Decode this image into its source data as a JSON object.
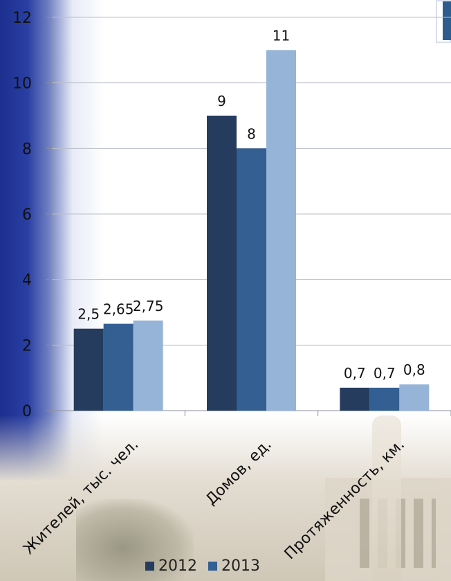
{
  "chart_data": {
    "type": "bar",
    "categories": [
      "Жителей, тыс. чел.",
      "Домов, ед.",
      "Протяженность, км."
    ],
    "series": [
      {
        "name": "2012",
        "values": [
          2.5,
          9,
          0.7
        ],
        "labels": [
          "2,5",
          "9",
          "0,7"
        ],
        "color": "#253c5e"
      },
      {
        "name": "2013",
        "values": [
          2.65,
          8,
          0.7
        ],
        "labels": [
          "2,65",
          "8",
          "0,7"
        ],
        "color": "#335f92"
      },
      {
        "name": "",
        "values": [
          2.75,
          11,
          0.8
        ],
        "labels": [
          "2,75",
          "11",
          "0,8"
        ],
        "color": "#96b3d8"
      }
    ],
    "y_ticks": [
      "0",
      "2",
      "4",
      "6",
      "8",
      "10",
      "12"
    ],
    "ylim": [
      0,
      12
    ],
    "grid": true,
    "legend_placement": "bottom"
  }
}
